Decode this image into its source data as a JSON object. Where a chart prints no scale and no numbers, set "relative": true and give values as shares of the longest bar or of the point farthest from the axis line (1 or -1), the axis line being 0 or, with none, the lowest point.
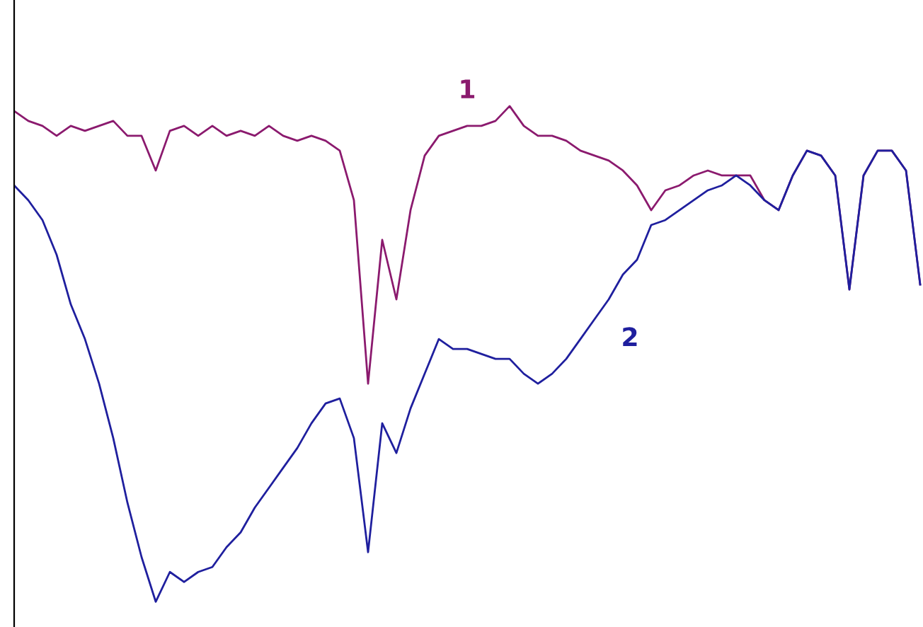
{
  "chart_data": {
    "type": "line",
    "relative": true,
    "categories": [
      null,
      null,
      null,
      null,
      null,
      null,
      null,
      null,
      null,
      null,
      null,
      null,
      null,
      null,
      null,
      null,
      null,
      null,
      null,
      null,
      null,
      null,
      null,
      null,
      null,
      null,
      null,
      null,
      null,
      null,
      null,
      null,
      null,
      null,
      null,
      null,
      null,
      null,
      null,
      null,
      null,
      null,
      null,
      null,
      null,
      null,
      null,
      null,
      null,
      null,
      null,
      null,
      null,
      null,
      null,
      null,
      null,
      null,
      null,
      null,
      null,
      null,
      null,
      null,
      null
    ],
    "series": [
      {
        "name": "1",
        "color": "#8b1a6e",
        "values": [
          0.99,
          0.97,
          0.96,
          0.94,
          0.96,
          0.95,
          0.96,
          0.97,
          0.94,
          0.94,
          0.87,
          0.95,
          0.96,
          0.94,
          0.96,
          0.94,
          0.95,
          0.94,
          0.96,
          0.94,
          0.93,
          0.94,
          0.93,
          0.91,
          0.81,
          0.44,
          0.73,
          0.61,
          0.79,
          0.9,
          0.94,
          0.95,
          0.96,
          0.96,
          0.97,
          1.0,
          0.96,
          0.94,
          0.94,
          0.93,
          0.91,
          0.9,
          0.89,
          0.87,
          0.84,
          0.79,
          0.83,
          0.84,
          0.86,
          0.87,
          0.86,
          0.86,
          0.86,
          0.81,
          0.79,
          0.86,
          0.91,
          0.9,
          0.86,
          0.63,
          0.86,
          0.91,
          0.91,
          0.87,
          0.64
        ]
      },
      {
        "name": "2",
        "color": "#1f1f9e",
        "values": [
          0.84,
          0.81,
          0.77,
          0.7,
          0.6,
          0.53,
          0.44,
          0.33,
          0.2,
          0.09,
          0.0,
          0.06,
          0.04,
          0.06,
          0.07,
          0.11,
          0.14,
          0.19,
          0.23,
          0.27,
          0.31,
          0.36,
          0.4,
          0.41,
          0.33,
          0.1,
          0.36,
          0.3,
          0.39,
          0.46,
          0.53,
          0.51,
          0.51,
          0.5,
          0.49,
          0.49,
          0.46,
          0.44,
          0.46,
          0.49,
          0.53,
          0.57,
          0.61,
          0.66,
          0.69,
          0.76,
          0.77,
          0.79,
          0.81,
          0.83,
          0.84,
          0.86,
          0.84,
          0.81,
          0.79,
          0.86,
          0.91,
          0.9,
          0.86,
          0.63,
          0.86,
          0.91,
          0.91,
          0.87,
          0.64
        ]
      }
    ],
    "legend": false
  }
}
